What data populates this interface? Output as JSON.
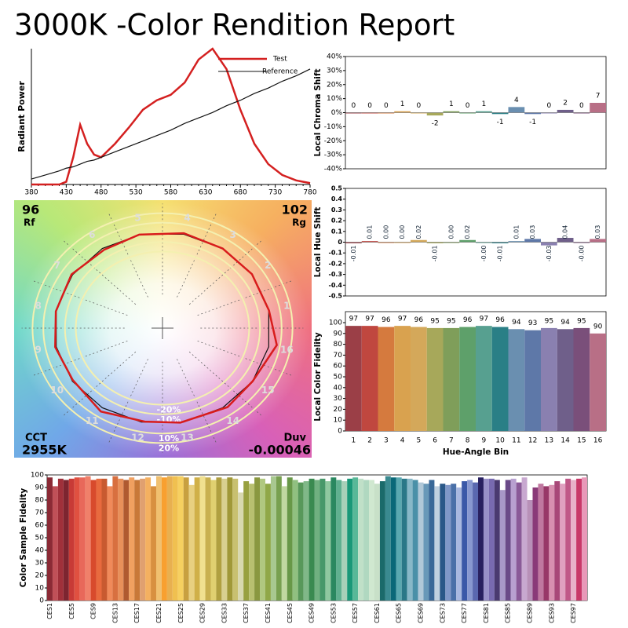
{
  "title": "3000K -Color Rendition Report",
  "chart_data": [
    {
      "type": "line",
      "y_label": "Radiant Power",
      "xlim": [
        380,
        780
      ],
      "ylim": [
        0,
        1
      ],
      "xticks": [
        380,
        430,
        480,
        530,
        580,
        630,
        680,
        730,
        780
      ],
      "legend": "upper right",
      "x": [
        380,
        400,
        420,
        430,
        440,
        450,
        460,
        470,
        480,
        500,
        520,
        540,
        560,
        580,
        600,
        620,
        640,
        660,
        680,
        700,
        720,
        740,
        760,
        780
      ],
      "series": [
        {
          "name": "Test",
          "color": "#d42020",
          "values": [
            0,
            0,
            0,
            0.02,
            0.2,
            0.44,
            0.3,
            0.22,
            0.2,
            0.3,
            0.42,
            0.55,
            0.62,
            0.66,
            0.75,
            0.92,
            1.0,
            0.85,
            0.55,
            0.3,
            0.15,
            0.07,
            0.03,
            0.01
          ]
        },
        {
          "name": "Reference",
          "color": "#111111",
          "values": [
            0.04,
            0.07,
            0.1,
            0.12,
            0.13,
            0.15,
            0.17,
            0.18,
            0.2,
            0.24,
            0.28,
            0.32,
            0.36,
            0.4,
            0.45,
            0.49,
            0.53,
            0.58,
            0.62,
            0.67,
            0.71,
            0.76,
            0.8,
            0.85
          ]
        }
      ]
    },
    {
      "type": "vector",
      "rf": 96,
      "rf_label": "Rf",
      "rg": 102,
      "rg_label": "Rg",
      "cct_label": "CCT",
      "cct": "2955K",
      "duv_label": "Duv",
      "duv": -0.00046,
      "hue_bins": [
        "1",
        "2",
        "3",
        "4",
        "5",
        "6",
        "7",
        "8",
        "9",
        "10",
        "11",
        "12",
        "13",
        "14",
        "15",
        "16"
      ],
      "rings": [
        {
          "value": -20,
          "label": "-20%"
        },
        {
          "value": -10,
          "label": "-10%"
        },
        {
          "value": 10,
          "label": "10%"
        },
        {
          "value": 20,
          "label": "20%"
        }
      ],
      "test_color": "#d81c1c",
      "reference_color": "#111111",
      "ring_color": "#f4f0b0"
    },
    {
      "type": "bar",
      "y_label": "Local Chroma Shift",
      "ylim": [
        -40,
        40
      ],
      "yticks": [
        {
          "value": 40,
          "label": "40%"
        },
        {
          "value": 30,
          "label": "30%"
        },
        {
          "value": 20,
          "label": "20%"
        },
        {
          "value": 10,
          "label": "10%"
        },
        {
          "value": 0,
          "label": "0%"
        },
        {
          "value": -10,
          "label": "-10%"
        },
        {
          "value": -20,
          "label": "-20%"
        },
        {
          "value": -30,
          "label": "-30%"
        },
        {
          "value": -40,
          "label": "-40%"
        }
      ],
      "values": [
        0,
        0,
        0,
        1,
        0,
        -2,
        1,
        0,
        1,
        -1,
        4,
        -1,
        0,
        2,
        0,
        7
      ],
      "colors": [
        "#9b3f47",
        "#c0473f",
        "#d57a3e",
        "#d9a24f",
        "#d4a85a",
        "#a7a85a",
        "#7f9e5a",
        "#5ea06a",
        "#57a090",
        "#2a7f86",
        "#6a8fb0",
        "#5e78a8",
        "#8a80b0",
        "#6f5f8a",
        "#7a4f7a",
        "#b86f86"
      ]
    },
    {
      "type": "bar",
      "y_label": "Local Hue Shift",
      "ylim": [
        -0.5,
        0.5
      ],
      "yticks": [
        0.5,
        0.4,
        0.3,
        0.2,
        0.1,
        0,
        -0.1,
        -0.2,
        -0.3,
        -0.4,
        -0.5
      ],
      "values": [
        -0.01,
        0.01,
        0,
        0,
        0.02,
        -0.01,
        0,
        0.02,
        0,
        -0.01,
        0.01,
        0.03,
        -0.03,
        0.04,
        0,
        0.03
      ],
      "value_labels": [
        "-0.01",
        "0.01",
        "0.00",
        "0.00",
        "0.02",
        "-0.01",
        "0.00",
        "0.02",
        "-0.00",
        "-0.01",
        "0.01",
        "0.03",
        "-0.03",
        "0.04",
        "-0.00",
        "0.03"
      ],
      "colors": [
        "#9b3f47",
        "#c0473f",
        "#d57a3e",
        "#d9a24f",
        "#d4a85a",
        "#a7a85a",
        "#7f9e5a",
        "#5ea06a",
        "#57a090",
        "#2a7f86",
        "#6a8fb0",
        "#5e78a8",
        "#8a80b0",
        "#6f5f8a",
        "#7a4f7a",
        "#b86f86"
      ]
    },
    {
      "type": "bar",
      "y_label": "Local Color Fidelity",
      "x_label": "Hue-Angle Bin",
      "ylim": [
        0,
        100
      ],
      "yticks": [
        0,
        10,
        20,
        30,
        40,
        50,
        60,
        70,
        80,
        90,
        100
      ],
      "categories": [
        "1",
        "2",
        "3",
        "4",
        "5",
        "6",
        "7",
        "8",
        "9",
        "10",
        "11",
        "12",
        "13",
        "14",
        "15",
        "16"
      ],
      "values": [
        97,
        97,
        96,
        97,
        96,
        95,
        95,
        96,
        97,
        96,
        94,
        93,
        95,
        94,
        95,
        90
      ],
      "colors": [
        "#9b3f47",
        "#c0473f",
        "#d57a3e",
        "#d9a24f",
        "#d4a85a",
        "#a7a85a",
        "#7f9e5a",
        "#5ea06a",
        "#57a090",
        "#2a7f86",
        "#6a8fb0",
        "#5e78a8",
        "#8a80b0",
        "#6f5f8a",
        "#7a4f7a",
        "#b86f86"
      ]
    },
    {
      "type": "bar",
      "y_label": "Color Sample Fidelity",
      "ylim": [
        0,
        100
      ],
      "yticks": [
        0,
        10,
        20,
        30,
        40,
        50,
        60,
        70,
        80,
        90,
        100
      ],
      "categories": [
        "CES1",
        null,
        null,
        null,
        "CES5",
        null,
        null,
        null,
        "CES9",
        null,
        null,
        null,
        "CES13",
        null,
        null,
        null,
        "CES17",
        null,
        null,
        null,
        "CES21",
        null,
        null,
        null,
        "CES25",
        null,
        null,
        null,
        "CES29",
        null,
        null,
        null,
        "CES33",
        null,
        null,
        null,
        "CES37",
        null,
        null,
        null,
        "CES41",
        null,
        null,
        null,
        "CES45",
        null,
        null,
        null,
        "CES49",
        null,
        null,
        null,
        "CES53",
        null,
        null,
        null,
        "CES57",
        null,
        null,
        null,
        "CES61",
        null,
        null,
        null,
        "CES65",
        null,
        null,
        null,
        "CES69",
        null,
        null,
        null,
        "CES73",
        null,
        null,
        null,
        "CES77",
        null,
        null,
        null,
        "CES81",
        null,
        null,
        null,
        "CES85",
        null,
        null,
        null,
        "CES89",
        null,
        null,
        null,
        "CES93",
        null,
        null,
        null,
        "CES97",
        null,
        null
      ],
      "values": [
        98,
        91,
        97,
        96,
        97,
        98,
        98,
        99,
        96,
        97,
        97,
        91,
        99,
        97,
        96,
        98,
        96,
        97,
        98,
        91,
        99,
        98,
        99,
        99,
        99,
        98,
        92,
        98,
        99,
        98,
        96,
        98,
        97,
        98,
        97,
        86,
        95,
        93,
        98,
        97,
        93,
        99,
        99,
        91,
        98,
        96,
        94,
        95,
        97,
        96,
        97,
        95,
        98,
        96,
        95,
        97,
        98,
        97,
        96,
        96,
        93,
        95,
        99,
        98,
        98,
        97,
        97,
        96,
        94,
        93,
        96,
        91,
        93,
        92,
        93,
        90,
        95,
        96,
        94,
        98,
        97,
        97,
        96,
        88,
        96,
        97,
        94,
        98,
        80,
        90,
        93,
        91,
        92,
        95,
        93,
        97,
        96,
        97,
        98
      ],
      "colors": [
        "#8b2a35",
        "#c05058",
        "#a0303a",
        "#7d2530",
        "#c83a36",
        "#e05040",
        "#e8685a",
        "#f0806a",
        "#d84a2c",
        "#e86a3e",
        "#c85a30",
        "#f08a5a",
        "#d87040",
        "#e8905a",
        "#b05a30",
        "#f0a060",
        "#c87838",
        "#e0a070",
        "#f4b060",
        "#d89040",
        "#f0c070",
        "#f8a030",
        "#e8b050",
        "#f0c050",
        "#f6d060",
        "#c8a040",
        "#e8d080",
        "#d0b048",
        "#f0e090",
        "#c8b050",
        "#e0d070",
        "#b0a040",
        "#d8d090",
        "#a09838",
        "#c8c070",
        "#d8d8b0",
        "#98a040",
        "#b8c070",
        "#8a9840",
        "#b0c880",
        "#90a848",
        "#a8c890",
        "#78a050",
        "#c0d8a0",
        "#689848",
        "#90c080",
        "#58985a",
        "#80b888",
        "#3a8a50",
        "#70b080",
        "#48986a",
        "#90c8a0",
        "#2a8860",
        "#60b090",
        "#a8d0b8",
        "#1a9878",
        "#58b898",
        "#c0e0c8",
        "#b0d8c0",
        "#d0e8d0",
        "#c8e0c8",
        "#1a6a6a",
        "#3a8a90",
        "#0a6878",
        "#5aa8b0",
        "#2a7888",
        "#88b8c8",
        "#4a90a8",
        "#b0c8d8",
        "#6898b8",
        "#3a6898",
        "#c0d0e0",
        "#2a5888",
        "#8098c8",
        "#4a70a8",
        "#a8b8e0",
        "#3a58a8",
        "#8898d0",
        "#5a68b0",
        "#282060",
        "#9890c8",
        "#786ab0",
        "#4a3a70",
        "#a898c8",
        "#6a4a88",
        "#b8a0d0",
        "#8a5a98",
        "#c8a8d0",
        "#b890b8",
        "#8a3a78",
        "#c078a0",
        "#983868",
        "#d890b0",
        "#a84878",
        "#e0a0c0",
        "#c05888",
        "#e8b0c8",
        "#c83868",
        "#e898b8"
      ]
    }
  ]
}
